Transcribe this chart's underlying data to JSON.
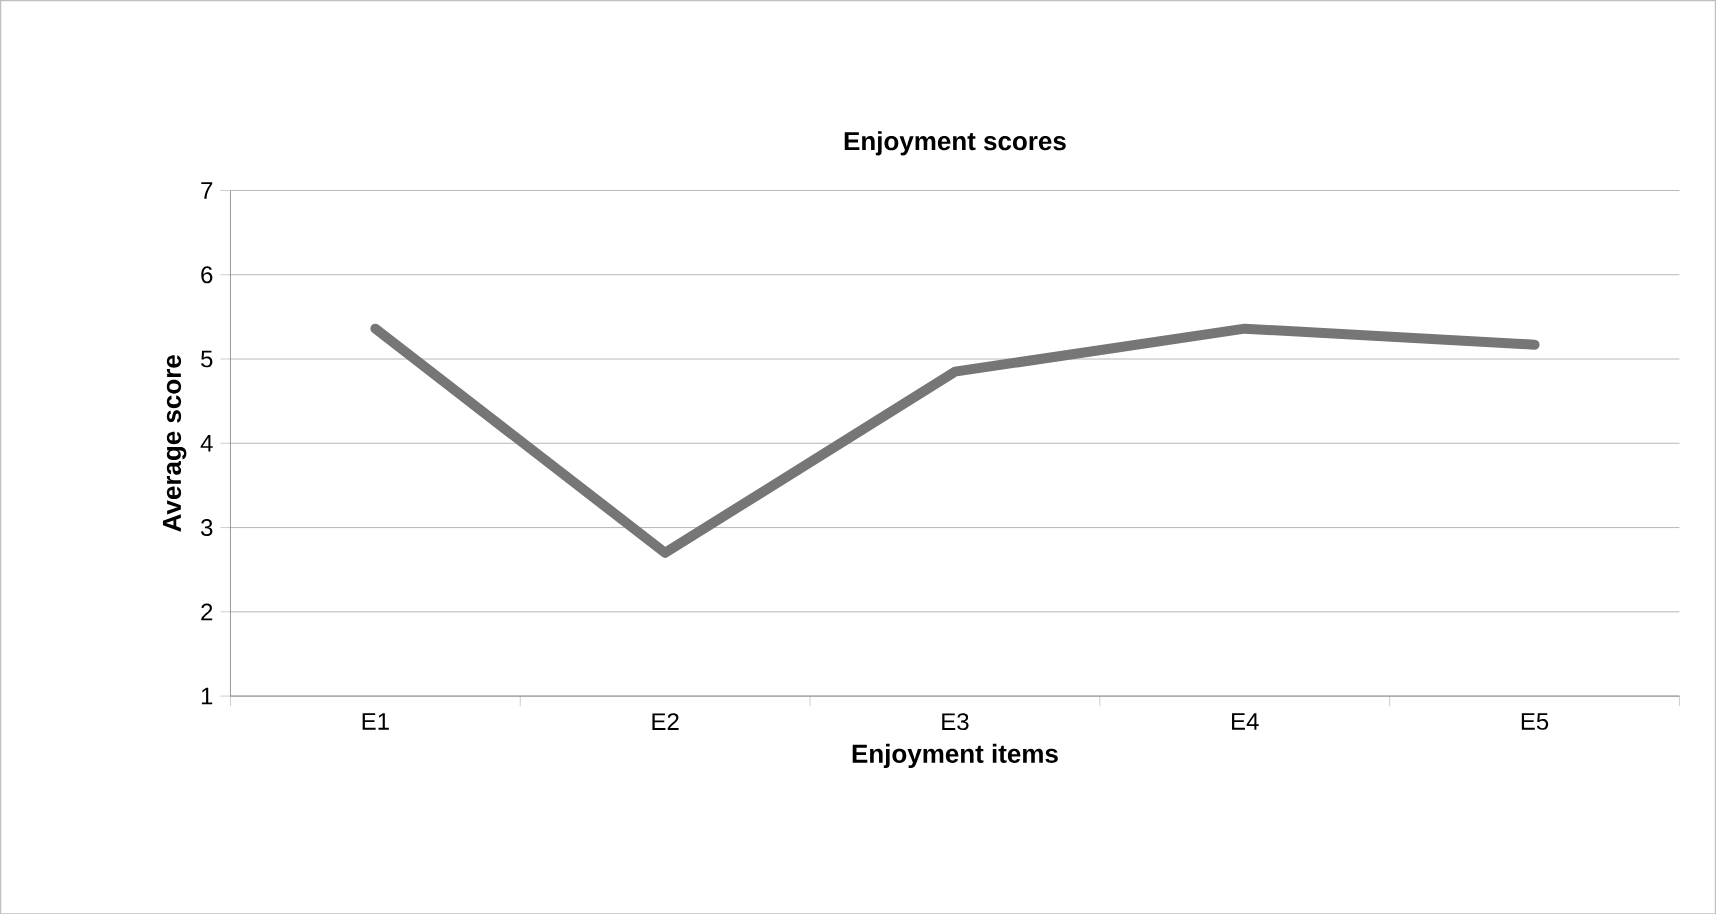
{
  "chart_data": {
    "type": "line",
    "title": "Enjoyment scores",
    "xlabel": "Enjoyment items",
    "ylabel": "Average score",
    "categories": [
      "E1",
      "E2",
      "E3",
      "E4",
      "E5"
    ],
    "values": [
      5.36,
      2.7,
      4.85,
      5.36,
      5.17
    ],
    "color": "#767676",
    "ylim": [
      1,
      7
    ],
    "yticks": [
      1,
      2,
      3,
      4,
      5,
      6,
      7
    ],
    "grid": "y",
    "marker": "none",
    "line_style": "solid"
  }
}
